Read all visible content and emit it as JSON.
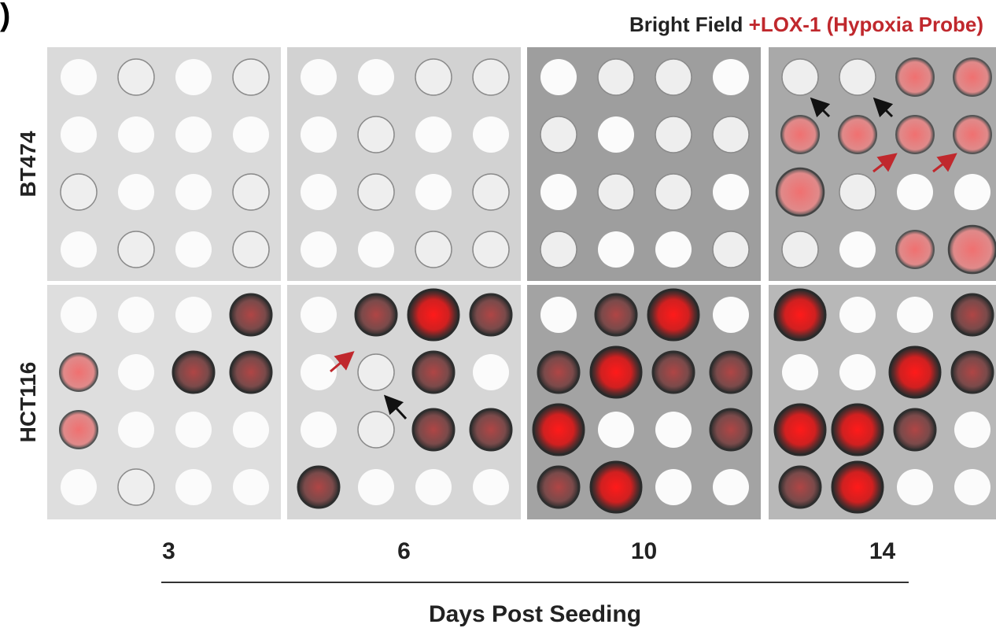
{
  "figure": {
    "panel_mark": ")",
    "legend": {
      "bright_field": "Bright Field",
      "probe": "+LOX-1 (Hypoxia Probe)"
    },
    "rows": [
      "BT474",
      "HCT116"
    ],
    "days": [
      3,
      6,
      10,
      14
    ],
    "x_axis_label": "Days Post Seeding"
  }
}
